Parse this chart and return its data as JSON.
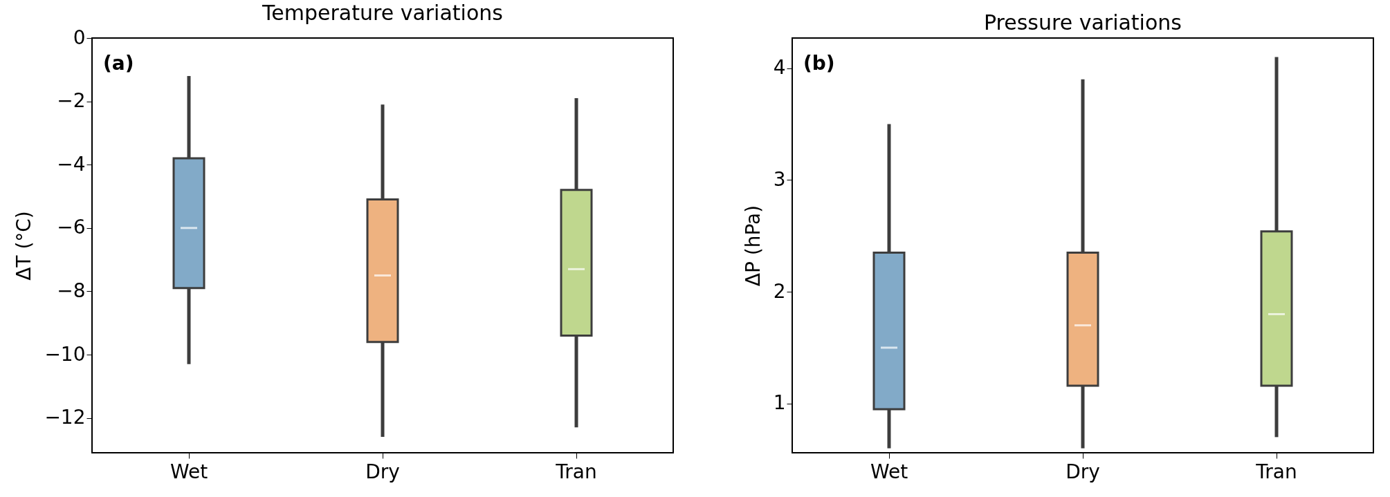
{
  "chart_data": [
    {
      "type": "box",
      "title": "Temperature variations",
      "ylabel": "ΔT (°C)",
      "categories": [
        "Wet",
        "Dry",
        "Tran"
      ],
      "colors": [
        "#82aac8",
        "#eeb280",
        "#bfd78e"
      ],
      "boxes": [
        {
          "low": -10.3,
          "q1": -7.9,
          "median": -6.0,
          "q3": -3.8,
          "high": -1.2
        },
        {
          "low": -12.6,
          "q1": -9.6,
          "median": -7.5,
          "q3": -5.1,
          "high": -2.1
        },
        {
          "low": -12.3,
          "q1": -9.4,
          "median": -7.3,
          "q3": -4.8,
          "high": -1.9
        }
      ],
      "ylim": [
        -13.1,
        0
      ],
      "yticks": [
        {
          "value": -12,
          "label": "−12"
        },
        {
          "value": -10,
          "label": "−10"
        },
        {
          "value": -8,
          "label": "−8"
        },
        {
          "value": -6,
          "label": "−6"
        },
        {
          "value": -4,
          "label": "−4"
        },
        {
          "value": -2,
          "label": "−2"
        },
        0
      ],
      "annotations": [
        "(a)"
      ]
    },
    {
      "type": "box",
      "title": "Pressure variations",
      "ylabel": "ΔP (hPa)",
      "categories": [
        "Wet",
        "Dry",
        "Tran"
      ],
      "colors": [
        "#82aac8",
        "#eeb280",
        "#bfd78e"
      ],
      "boxes": [
        {
          "low": 0.6,
          "q1": 0.95,
          "median": 1.5,
          "q3": 2.35,
          "high": 3.5
        },
        {
          "low": 0.6,
          "q1": 1.16,
          "median": 1.7,
          "q3": 2.35,
          "high": 3.9
        },
        {
          "low": 0.7,
          "q1": 1.16,
          "median": 1.8,
          "q3": 2.54,
          "high": 4.1
        }
      ],
      "ylim": [
        0.56,
        4.27
      ],
      "yticks": [
        1,
        2,
        3,
        4
      ],
      "annotations": [
        "(b)"
      ]
    }
  ]
}
